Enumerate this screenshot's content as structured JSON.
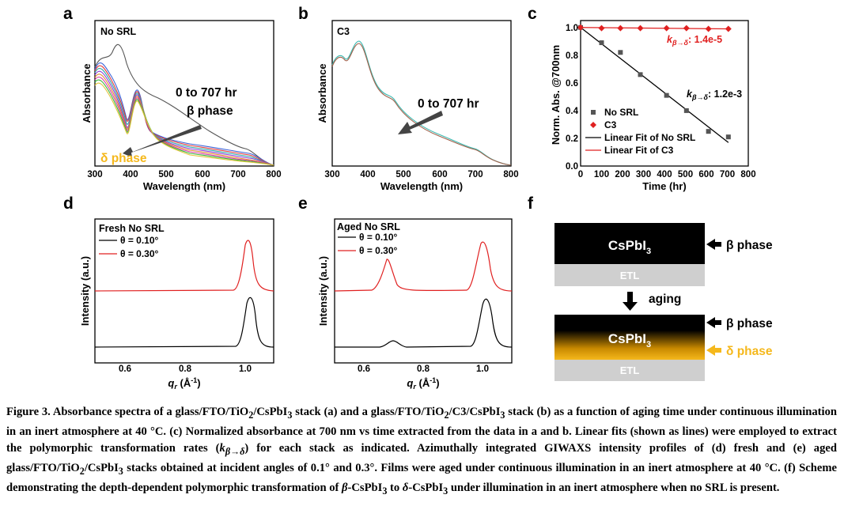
{
  "panels": {
    "a": {
      "letter": "a",
      "label": "No SRL",
      "xlabel": "Wavelength (nm)",
      "ylabel": "Absorbance",
      "xticks": [
        "300",
        "400",
        "500",
        "600",
        "700",
        "800"
      ],
      "annotation_time": "0 to 707 hr",
      "annotation_beta": "β phase",
      "annotation_delta": "δ phase",
      "delta_color": "#f5b81c"
    },
    "b": {
      "letter": "b",
      "label": "C3",
      "xlabel": "Wavelength (nm)",
      "ylabel": "Absorbance",
      "xticks": [
        "300",
        "400",
        "500",
        "600",
        "700",
        "800"
      ],
      "annotation_time": "0 to 707 hr"
    },
    "c": {
      "letter": "c",
      "xlabel": "Time (hr)",
      "ylabel": "Norm. Abs. @700nm",
      "xticks": [
        "0",
        "100",
        "200",
        "300",
        "400",
        "500",
        "600",
        "700",
        "800"
      ],
      "yticks": [
        "0.0",
        "0.2",
        "0.4",
        "0.6",
        "0.8",
        "1.0"
      ],
      "rate_c3_k": "k",
      "rate_c3_sub": "β→δ",
      "rate_c3_value": ": 1.4e-5",
      "rate_nosrl_k": "k",
      "rate_nosrl_sub": "β→δ",
      "rate_nosrl_value": ": 1.2e-3",
      "legend": [
        "No SRL",
        "C3",
        "Linear Fit of No SRL",
        "Linear Fit of C3"
      ]
    },
    "d": {
      "letter": "d",
      "label": "Fresh No SRL",
      "legend": [
        "θ = 0.10°",
        "θ = 0.30°"
      ],
      "ylabel": "Intensity (a.u.)",
      "xlabel_q": "q",
      "xlabel_sub": "r",
      "xlabel_unit": " (Å",
      "xlabel_sup": "-1",
      "xlabel_close": ")",
      "xticks": [
        "0.6",
        "0.8",
        "1.0"
      ]
    },
    "e": {
      "letter": "e",
      "label": "Aged No SRL",
      "legend": [
        "θ = 0.10°",
        "θ = 0.30°"
      ],
      "ylabel": "Intensity (a.u.)",
      "xlabel_q": "q",
      "xlabel_sub": "r",
      "xlabel_unit": " (Å",
      "xlabel_sup": "-1",
      "xlabel_close": ")",
      "xticks": [
        "0.6",
        "0.8",
        "1.0"
      ]
    },
    "f": {
      "letter": "f",
      "layer_top": "CsPbI",
      "layer_sub": "3",
      "etl": "ETL",
      "beta": "β phase",
      "aging": "aging",
      "delta": "δ phase",
      "delta_color": "#f5b81c"
    }
  },
  "chart_data": [
    {
      "type": "line",
      "panel": "a",
      "x": [
        300,
        320,
        340,
        360,
        380,
        400,
        420,
        440,
        460,
        500,
        600,
        700,
        730,
        800
      ],
      "series": [
        {
          "values": [
            0.82,
            0.86,
            0.84,
            0.88,
            0.78,
            0.64,
            0.55,
            0.46,
            0.34,
            0.28,
            0.18,
            0.16,
            0.04,
            0.01
          ]
        },
        {
          "values": [
            0.7,
            0.66,
            0.52,
            0.4,
            0.33,
            0.25,
            0.42,
            0.22,
            0.13,
            0.1,
            0.06,
            0.05,
            0.03,
            0.01
          ]
        }
      ]
    },
    {
      "type": "line",
      "panel": "b",
      "x": [
        300,
        320,
        340,
        370,
        400,
        430,
        460,
        500,
        600,
        700,
        730,
        800
      ],
      "series": [
        {
          "values": [
            0.8,
            0.86,
            0.84,
            0.92,
            0.74,
            0.64,
            0.58,
            0.44,
            0.22,
            0.15,
            0.05,
            0.02
          ]
        }
      ]
    },
    {
      "type": "scatter",
      "panel": "c",
      "xlim": [
        0,
        800
      ],
      "ylim": [
        0.0,
        1.05
      ],
      "series": [
        {
          "name": "No SRL",
          "x": [
            0,
            100,
            190,
            285,
            410,
            505,
            610,
            705
          ],
          "y": [
            1.0,
            0.89,
            0.82,
            0.66,
            0.51,
            0.4,
            0.25,
            0.21
          ]
        },
        {
          "name": "C3",
          "x": [
            0,
            100,
            190,
            285,
            410,
            505,
            610,
            705
          ],
          "y": [
            1.0,
            0.995,
            0.995,
            0.995,
            0.995,
            0.995,
            0.99,
            0.99
          ]
        },
        {
          "name": "Linear Fit of No SRL",
          "x": [
            0,
            705
          ],
          "y": [
            1.0,
            0.17
          ]
        },
        {
          "name": "Linear Fit of C3",
          "x": [
            0,
            705
          ],
          "y": [
            1.0,
            0.99
          ]
        }
      ]
    },
    {
      "type": "line",
      "panel": "d",
      "xlim": [
        0.5,
        1.1
      ],
      "series": [
        {
          "name": "θ = 0.10°",
          "peaks": [
            1.02
          ]
        },
        {
          "name": "θ = 0.30°",
          "peaks": [
            1.01
          ]
        }
      ]
    },
    {
      "type": "line",
      "panel": "e",
      "xlim": [
        0.5,
        1.1
      ],
      "series": [
        {
          "name": "θ = 0.10°",
          "peaks": [
            0.7,
            1.01
          ]
        },
        {
          "name": "θ = 0.30°",
          "peaks": [
            0.68,
            1.0
          ]
        }
      ]
    }
  ],
  "caption": {
    "s1": "Figure 3. Absorbance spectra of a glass/FTO/TiO",
    "s1b": "/CsPbI",
    "s1c": " stack (a) and a glass/FTO/TiO",
    "s1d": "/C3/CsPbI",
    "s1e": " stack (b) as a function of aging time under continuous illumination in an inert atmosphere at 40 °C. (c) Normalized absorbance at 700 nm vs time extracted from the data in a and b. Linear fits (shown as lines) were employed to extract the polymorphic transformation rates (",
    "k": "k",
    "ksub": "β→δ",
    "s2": ") for each stack as indicated. Azimuthally integrated GIWAXS intensity profiles of (d) fresh and (e) aged glass/FTO/TiO",
    "s2b": "/CsPbI",
    "s3": " stacks obtained at incident angles of 0.1° and 0.3°. Films were aged under continuous illumination in an inert atmosphere at 40 °C. (f) Scheme demonstrating the depth-dependent polymorphic transformation of ",
    "beta": "β",
    "s4": "-CsPbI",
    "s5": " to ",
    "delta": "δ",
    "s6": "-CsPbI",
    "s7": " under illumination in an inert atmosphere when no SRL is present.",
    "sub2": "2",
    "sub3": "3"
  }
}
